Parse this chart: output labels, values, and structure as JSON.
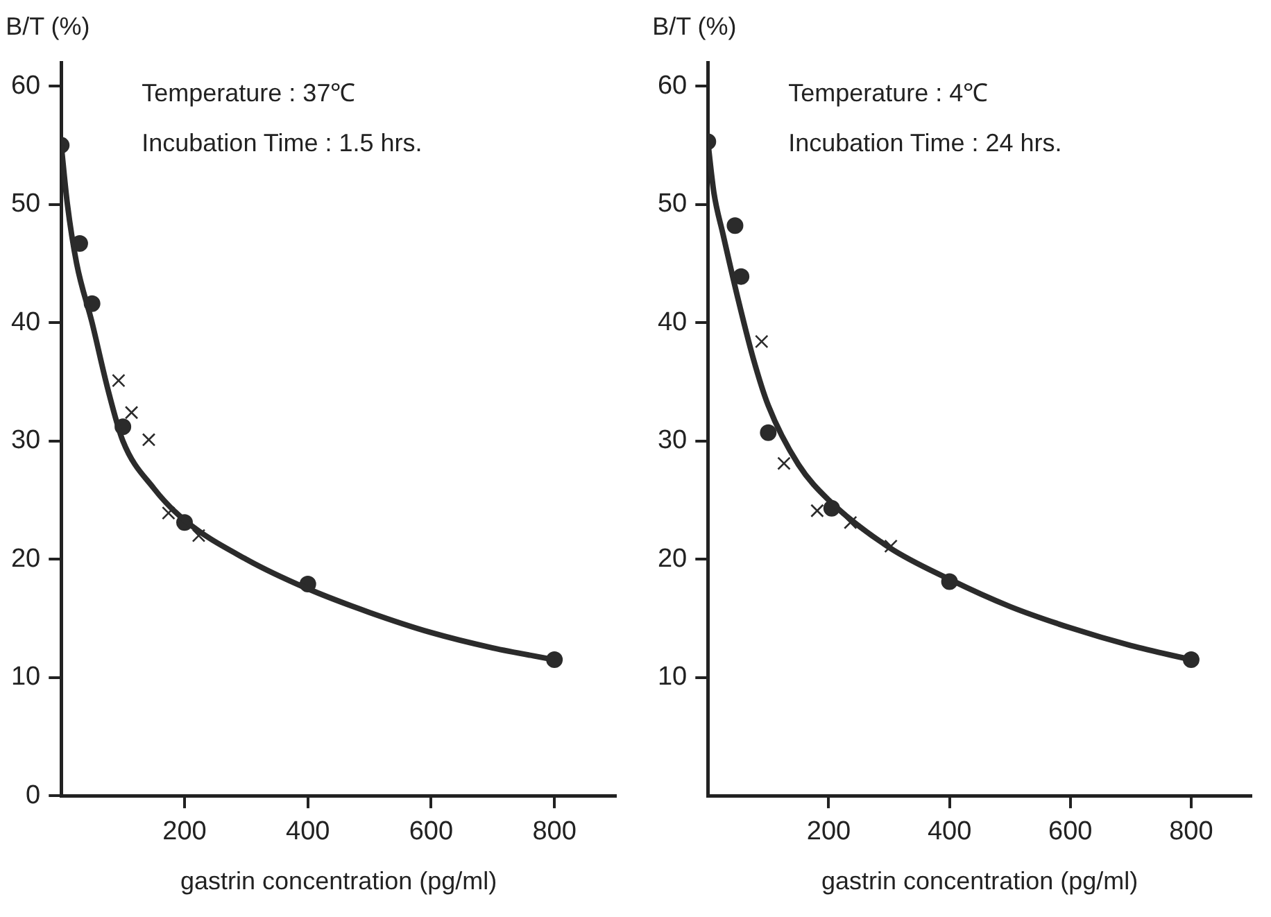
{
  "chart_data": [
    {
      "type": "scatter",
      "xlabel": "gastrin concentration (pg/ml)",
      "ylabel": "B/T (%)",
      "annotations": [
        "Temperature : 37℃",
        "Incubation Time : 1.5 hrs."
      ],
      "xlim": [
        0,
        900
      ],
      "ylim": [
        0,
        62
      ],
      "xticks": [
        200,
        400,
        600,
        800
      ],
      "yticks": [
        0,
        10,
        20,
        30,
        40,
        50,
        60
      ],
      "series": [
        {
          "type": "line",
          "marker": "none",
          "color": "#2b2b2b",
          "x": [
            0,
            10,
            25,
            50,
            75,
            100,
            150,
            200,
            300,
            400,
            500,
            600,
            700,
            800
          ],
          "values": [
            55,
            50,
            45,
            40,
            34.5,
            30,
            26,
            23.3,
            20,
            17.5,
            15.5,
            13.8,
            12.5,
            11.5
          ]
        },
        {
          "type": "scatter",
          "marker": "circle",
          "color": "#2b2b2b",
          "x": [
            0,
            30,
            50,
            100,
            200,
            400,
            800
          ],
          "values": [
            55,
            46.7,
            41.6,
            31.2,
            23.1,
            17.9,
            11.5
          ]
        },
        {
          "type": "scatter",
          "marker": "cross",
          "color": "#2b2b2b",
          "x": [
            93,
            114,
            142,
            174,
            223
          ],
          "values": [
            35.1,
            32.4,
            30.1,
            23.9,
            22
          ]
        }
      ]
    },
    {
      "type": "scatter",
      "xlabel": "gastrin concentration (pg/ml)",
      "ylabel": "B/T (%)",
      "annotations": [
        "Temperature : 4℃",
        "Incubation Time : 24 hrs."
      ],
      "xlim": [
        0,
        900
      ],
      "ylim": [
        0,
        62
      ],
      "xticks": [
        200,
        400,
        600,
        800
      ],
      "yticks": [
        10,
        20,
        30,
        40,
        50,
        60
      ],
      "series": [
        {
          "type": "line",
          "marker": "none",
          "color": "#2b2b2b",
          "x": [
            0,
            10,
            25,
            50,
            75,
            100,
            150,
            200,
            300,
            400,
            500,
            600,
            700,
            800
          ],
          "values": [
            55.3,
            51,
            47.5,
            42,
            37,
            33,
            28,
            25,
            21,
            18.3,
            16,
            14.2,
            12.7,
            11.5
          ]
        },
        {
          "type": "scatter",
          "marker": "circle",
          "color": "#2b2b2b",
          "x": [
            0,
            45,
            55,
            100,
            205,
            400,
            800
          ],
          "values": [
            55.3,
            48.2,
            43.9,
            30.7,
            24.3,
            18.1,
            11.5
          ]
        },
        {
          "type": "scatter",
          "marker": "cross",
          "color": "#2b2b2b",
          "x": [
            89,
            126,
            181,
            236,
            303
          ],
          "values": [
            38.4,
            28.1,
            24.1,
            23.1,
            21.1
          ]
        }
      ]
    }
  ]
}
